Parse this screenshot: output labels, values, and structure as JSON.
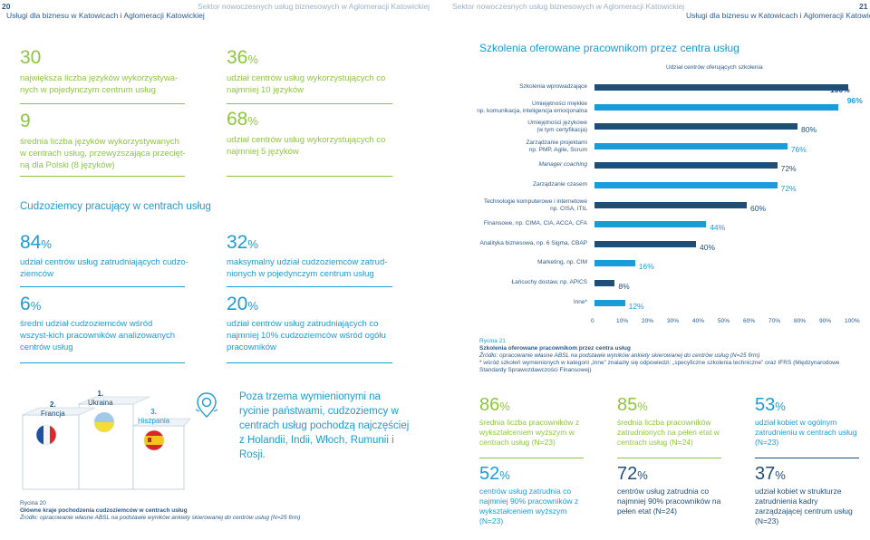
{
  "header": {
    "page_left": "20",
    "title_left": "Usługi dla biznesu w Katowicach i Aglomeracji Katowickiej",
    "title_left_light": "Sektor nowoczesnych usług biznesowych w Aglomeracji Katowickiej",
    "title_right_light": "Sektor nowoczesnych usług biznesowych w Aglomeracji Katowickiej",
    "title_right": "Usługi dla biznesu w Katowicach i Aglomeracji Katowickiej",
    "page_right": "21"
  },
  "languages": {
    "s1_num": "30",
    "s1_text": "największa liczba języków wykorzystywa-nych w pojedynczym centrum usług",
    "s2_num": "9",
    "s2_text": "średnia liczba języków wykorzystywanych w centrach usług, przewyższająca przecięt-ną dla Polski (8 języków)",
    "s3_num": "36",
    "s3_pct": "%",
    "s3_text": "udział centrów usług wykorzystujących co najmniej 10 języków",
    "s4_num": "68",
    "s4_pct": "%",
    "s4_text": "udział centrów usług wykorzystujących co najmniej 5 języków"
  },
  "foreigners": {
    "title": "Cudzoziemcy pracujący w centrach usług",
    "s1_num": "84",
    "s1_pct": "%",
    "s1_text": "udział centrów usług zatrudniających cudzo-ziemców",
    "s2_num": "6",
    "s2_pct": "%",
    "s2_text": "średni udział cudzoziemców wśród wszyst-kich pracowników analizowanych centrów usług",
    "s3_num": "32",
    "s3_pct": "%",
    "s3_text": "maksymalny udział cudzoziemców zatrud-nionych w pojedynczym centrum usług",
    "s4_num": "20",
    "s4_pct": "%",
    "s4_text": "udział centrów usług zatrudniających co najmniej 10% cudzoziemców wśród ogółu pracowników"
  },
  "podium": {
    "first": "1.\nUkraina",
    "first_rank": "1.",
    "first_name": "Ukraina",
    "second_rank": "2.",
    "second_name": "Francja",
    "third_rank": "3.",
    "third_name": "Hiszpania",
    "other_countries": "Poza trzema wymienionymi na rycinie państwami, cudzoziemcy w centrach usług pochodzą najczęściej z Holandii, Indii, Włoch, Rumunii i Rosji.",
    "caption_label": "Rycina 20",
    "caption_title": "Główne kraje pochodzenia cudzoziemców w centrach usług",
    "caption_source": "Źródło: opracowanie własne ABSL na podstawie wyników ankiety skierowanej do centrów usług (N=25 firm)"
  },
  "training": {
    "title": "Szkolenia oferowane pracownikom przez centra usług",
    "axis_title": "Udział centrów oferujących szkolenia",
    "caption_label": "Rycina 21",
    "caption_title": "Szkolenia oferowane pracownikom przez centra usług",
    "caption_source": "Źródło: opracowanie własne ABSL na podstawie wyników ankiety skierowanej do centrów usług (N=25 firm)",
    "caption_note": "* wśród szkoleń wymienionych w kategorii „Inne” znalazły się odpowiedzi: „specyficzne szkolenia techniczne” oraz IFRS (Międzynarodowe Standardy Sprawozdawczości Finansowej)"
  },
  "chart_data": {
    "type": "bar",
    "orientation": "horizontal",
    "title": "Udział centrów oferujących szkolenia",
    "categories": [
      "Szkolenia wprowadzające",
      "Umiejętności miękkie np. komunikacja, inteligencja emocjonalna",
      "Umiejętności językowe (w tym certyfikacja)",
      "Zarządzanie projektami np. PMP, Agile, Scrum",
      "Manager coaching",
      "Zarządzanie czasem",
      "Technologie komputerowe i internetowe np. CISA, ITIL",
      "Finansowe, np. CIMA, CIA, ACCA, CFA",
      "Analityka biznesowa, np. 6 Sigma, CBAP",
      "Marketing, np. CIM",
      "Łańcuchy dostaw, np. APICS",
      "Inne*"
    ],
    "label_lines": [
      [
        "Szkolenia wprowadzające"
      ],
      [
        "Umiejętności miękkie",
        "np. komunikacja, inteligencja emocjonalna"
      ],
      [
        "Umiejętności językowe",
        "(w tym certyfikacja)"
      ],
      [
        "Zarządzanie projektami",
        "np. PMP, Agile, Scrum"
      ],
      [
        "Manager coaching"
      ],
      [
        "Zarządzanie czasem"
      ],
      [
        "Technologie komputerowe i internetowe",
        "np. CISA, ITIL"
      ],
      [
        "Finansowe, np. CIMA, CIA, ACCA, CFA"
      ],
      [
        "Analityka biznesowa, np. 6 Sigma, CBAP"
      ],
      [
        "Marketing, np. CIM"
      ],
      [
        "Łańcuchy dostaw, np. APICS"
      ],
      [
        "Inne*"
      ]
    ],
    "values": [
      100,
      96,
      80,
      76,
      72,
      72,
      60,
      44,
      40,
      16,
      8,
      12
    ],
    "value_labels": [
      "100%",
      "96%",
      "80%",
      "76%",
      "72%",
      "72%",
      "60%",
      "44%",
      "40%",
      "16%",
      "8%",
      "12%"
    ],
    "xlim": [
      0,
      100
    ],
    "x_ticks": [
      "0",
      "10%",
      "20%",
      "30%",
      "40%",
      "50%",
      "60%",
      "70%",
      "80%",
      "90%",
      "100%"
    ],
    "colors": {
      "bar_dark": "#1f4e79",
      "bar_light": "#1b9bd7",
      "label_dark": "#1f4e79",
      "label_light": "#1b9bd7"
    }
  },
  "experience": {
    "s1_num": "86",
    "s1_pct": "%",
    "s1_text": "średnia liczba pracowników z wykształceniem wyższym w centrach usług (N=23)",
    "s2_num": "52",
    "s2_pct": "%",
    "s2_text": "centrów usług zatrudnia co najmniej 90% pracowników z wykształceniem wyższym (N=23)",
    "s3_num": "85",
    "s3_pct": "%",
    "s3_text": "średnia liczba pracowników zatrudnionych na pełen etat w centrach usług (N=24)",
    "s4_num": "72",
    "s4_pct": "%",
    "s4_text": "centrów usług zatrudnia co najmniej 90% pracowników na pełen etat (N=24)",
    "s5_num": "53",
    "s5_pct": "%",
    "s5_text": "udział kobiet w ogólnym zatrudnieniu w centrach usług (N=23)",
    "s6_num": "37",
    "s6_pct": "%",
    "s6_text": "udział kobiet w strukturze zatrudnienia kadry zarządzającej centrum usług (N=23)"
  },
  "colors": {
    "green": "#8dc63f",
    "blue": "#1b9bd7",
    "navy": "#1f4e79"
  }
}
